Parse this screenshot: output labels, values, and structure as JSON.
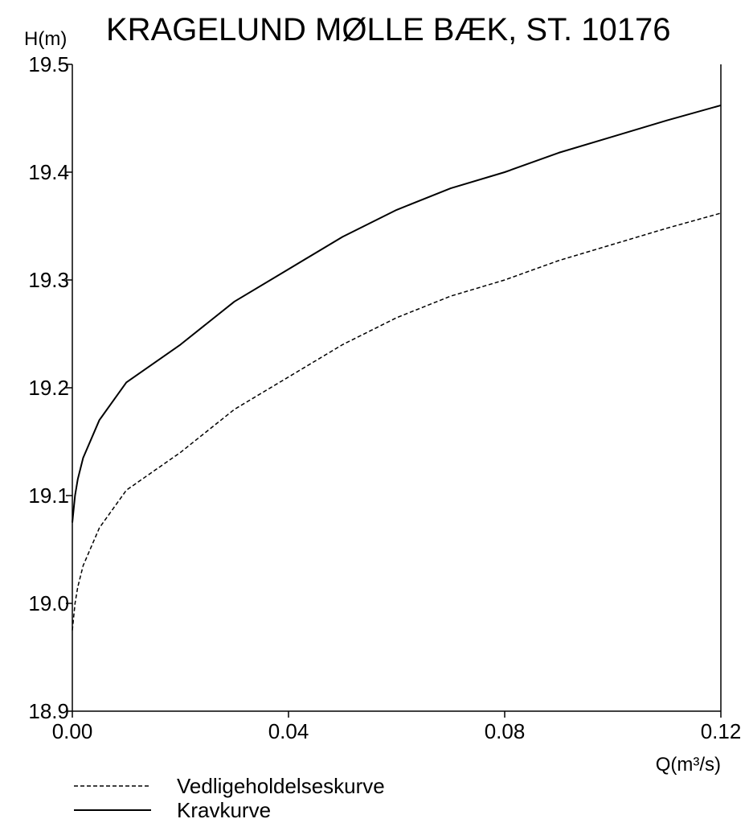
{
  "chart_data": {
    "type": "line",
    "title": "KRAGELUND MØLLE BÆK, ST. 10176",
    "ylabel": "H(m)",
    "xlabel": "Q(m³/s)",
    "xlim": [
      0,
      0.12
    ],
    "ylim": [
      18.9,
      19.5
    ],
    "x_ticks": [
      "0.00",
      "0.04",
      "0.08",
      "0.12"
    ],
    "y_ticks": [
      "18.9",
      "19.0",
      "19.1",
      "19.2",
      "19.3",
      "19.4",
      "19.5"
    ],
    "grid": false,
    "legend_position": "bottom-left",
    "series": [
      {
        "name": "Vedligeholdelseskurve",
        "style": "dashed",
        "color": "#000000",
        "x": [
          0,
          0.0005,
          0.001,
          0.002,
          0.005,
          0.01,
          0.02,
          0.03,
          0.04,
          0.05,
          0.06,
          0.07,
          0.08,
          0.09,
          0.1,
          0.11,
          0.12
        ],
        "y": [
          18.975,
          19.0,
          19.015,
          19.035,
          19.07,
          19.105,
          19.14,
          19.18,
          19.21,
          19.24,
          19.265,
          19.285,
          19.3,
          19.318,
          19.333,
          19.348,
          19.362
        ]
      },
      {
        "name": "Kravkurve",
        "style": "solid",
        "color": "#000000",
        "x": [
          0,
          0.0005,
          0.001,
          0.002,
          0.005,
          0.01,
          0.02,
          0.03,
          0.04,
          0.05,
          0.06,
          0.07,
          0.08,
          0.09,
          0.1,
          0.11,
          0.12
        ],
        "y": [
          19.075,
          19.1,
          19.115,
          19.135,
          19.17,
          19.205,
          19.24,
          19.28,
          19.31,
          19.34,
          19.365,
          19.385,
          19.4,
          19.418,
          19.433,
          19.448,
          19.462
        ]
      }
    ]
  }
}
